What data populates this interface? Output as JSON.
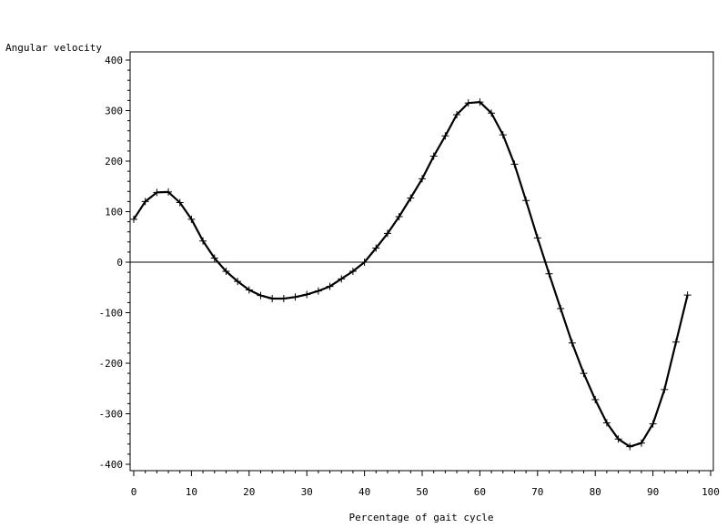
{
  "chart_data": {
    "type": "line",
    "title": "",
    "xlabel": "Percentage of gait cycle",
    "ylabel": "Angular velocity",
    "xlim": [
      0,
      100
    ],
    "ylim": [
      -410,
      410
    ],
    "x_ticks": [
      0,
      10,
      20,
      30,
      40,
      50,
      60,
      70,
      80,
      90,
      100
    ],
    "y_ticks": [
      -400,
      -300,
      -200,
      -100,
      0,
      100,
      200,
      300,
      400
    ],
    "reference_line_y": 0,
    "grid": false,
    "marker": "plus",
    "series": [
      {
        "name": "",
        "x": [
          0,
          2,
          4,
          6,
          8,
          10,
          12,
          14,
          16,
          18,
          20,
          22,
          24,
          26,
          28,
          30,
          32,
          34,
          36,
          38,
          40,
          42,
          44,
          46,
          48,
          50,
          52,
          54,
          56,
          58,
          60,
          62,
          64,
          66,
          68,
          70,
          72,
          74,
          76,
          78,
          80,
          82,
          84,
          86,
          88,
          90,
          92,
          94,
          96
        ],
        "y": [
          85,
          120,
          138,
          139,
          118,
          85,
          42,
          8,
          -18,
          -38,
          -55,
          -66,
          -72,
          -72,
          -69,
          -64,
          -57,
          -48,
          -33,
          -18,
          0,
          28,
          57,
          90,
          127,
          165,
          210,
          250,
          292,
          315,
          317,
          295,
          252,
          194,
          122,
          48,
          -23,
          -92,
          -160,
          -220,
          -272,
          -318,
          -350,
          -365,
          -358,
          -320,
          -252,
          -158,
          -65
        ]
      }
    ]
  }
}
